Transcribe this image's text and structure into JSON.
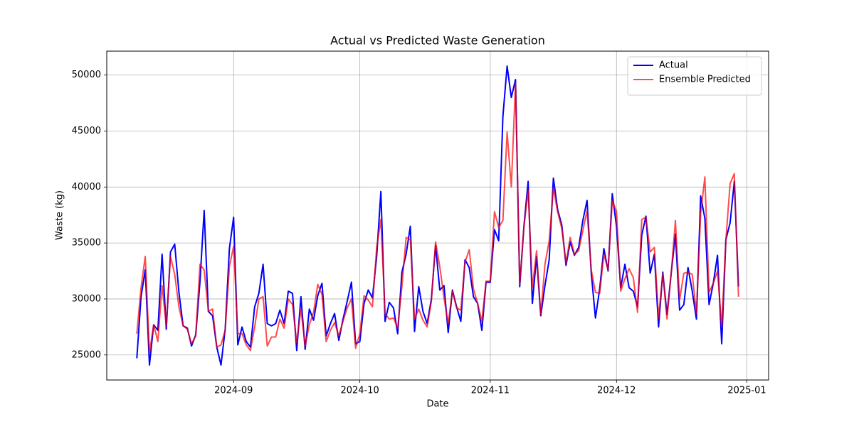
{
  "chart_data": {
    "type": "line",
    "title": "Actual vs Predicted Waste Generation",
    "xlabel": "Date",
    "ylabel": "Waste (kg)",
    "xlim": [
      -7.15,
      150.15
    ],
    "xticks": [
      {
        "value": 23,
        "label": "2024-09"
      },
      {
        "value": 53,
        "label": "2024-10"
      },
      {
        "value": 84,
        "label": "2024-11"
      },
      {
        "value": 114,
        "label": "2024-12"
      },
      {
        "value": 145,
        "label": "2025-01"
      }
    ],
    "ylim": [
      22765,
      52135
    ],
    "yticks": [
      25000,
      30000,
      35000,
      40000,
      45000,
      50000
    ],
    "grid": true,
    "legend": "upper right",
    "series": [
      {
        "name": "Actual",
        "color": "#0000ff",
        "values": [
          24700,
          30200,
          32600,
          24100,
          27700,
          27200,
          34000,
          27300,
          34200,
          34900,
          30600,
          27600,
          27400,
          25800,
          26800,
          31500,
          37900,
          28900,
          28500,
          25700,
          24100,
          27300,
          34500,
          37300,
          25900,
          27500,
          26200,
          25700,
          29300,
          30500,
          33100,
          27800,
          27600,
          27800,
          29000,
          27800,
          30700,
          30500,
          25400,
          30200,
          25500,
          29100,
          28100,
          30300,
          31400,
          26700,
          27800,
          28700,
          26300,
          28200,
          29800,
          31500,
          26000,
          26200,
          29600,
          30800,
          30100,
          33800,
          39600,
          28000,
          29700,
          29200,
          26900,
          32400,
          34000,
          36500,
          27100,
          31100,
          28900,
          27800,
          30000,
          34800,
          30800,
          31200,
          27000,
          30800,
          29300,
          28000,
          33500,
          32800,
          30200,
          29600,
          27200,
          31500,
          31500,
          36200,
          35200,
          46300,
          50800,
          48000,
          49600,
          31100,
          36500,
          40500,
          29600,
          33800,
          28500,
          31200,
          33500,
          40800,
          38000,
          36600,
          33000,
          35100,
          33900,
          34600,
          37000,
          38800,
          32300,
          28300,
          30900,
          34500,
          32500,
          39400,
          36500,
          31000,
          33100,
          31000,
          30700,
          29300,
          35700,
          37400,
          32300,
          34000,
          27500,
          32400,
          28600,
          32300,
          35800,
          29000,
          29500,
          32800,
          30700,
          28200,
          39200,
          37200,
          29500,
          31400,
          33900,
          26000,
          35300,
          36800,
          40500,
          31100
        ]
      },
      {
        "name": "Ensemble Predicted",
        "color": "#ff0000",
        "values": [
          26900,
          31000,
          33800,
          25200,
          27700,
          26200,
          31200,
          27600,
          33800,
          32200,
          29300,
          27600,
          27300,
          26000,
          26700,
          33100,
          32600,
          28900,
          29100,
          25700,
          25900,
          27200,
          32900,
          34700,
          26900,
          26900,
          25900,
          25400,
          27500,
          30000,
          30200,
          25800,
          26600,
          26600,
          28200,
          27400,
          30000,
          29500,
          26100,
          29100,
          25800,
          27700,
          28800,
          31300,
          30400,
          26200,
          27200,
          27900,
          26700,
          28000,
          29200,
          30000,
          25600,
          26900,
          30300,
          29900,
          29300,
          34600,
          37100,
          28700,
          28200,
          28300,
          27400,
          31100,
          35500,
          35300,
          28200,
          29100,
          28100,
          27500,
          29800,
          35100,
          32900,
          30100,
          27800,
          30700,
          29200,
          29000,
          33300,
          34400,
          30900,
          29600,
          28000,
          31600,
          31600,
          37800,
          36400,
          37000,
          44900,
          40000,
          49300,
          31300,
          36400,
          39700,
          31000,
          34300,
          28600,
          33100,
          35200,
          39900,
          37800,
          36300,
          33200,
          35500,
          34000,
          34300,
          36100,
          37900,
          32600,
          30600,
          30500,
          34000,
          32600,
          38800,
          37800,
          30700,
          31800,
          32700,
          31900,
          28800,
          37100,
          37300,
          34200,
          34600,
          28300,
          32300,
          28200,
          32300,
          37000,
          29900,
          32300,
          32400,
          32200,
          28700,
          37600,
          40900,
          30600,
          31400,
          32500,
          27500,
          35300,
          40300,
          41200,
          30200
        ]
      }
    ]
  }
}
